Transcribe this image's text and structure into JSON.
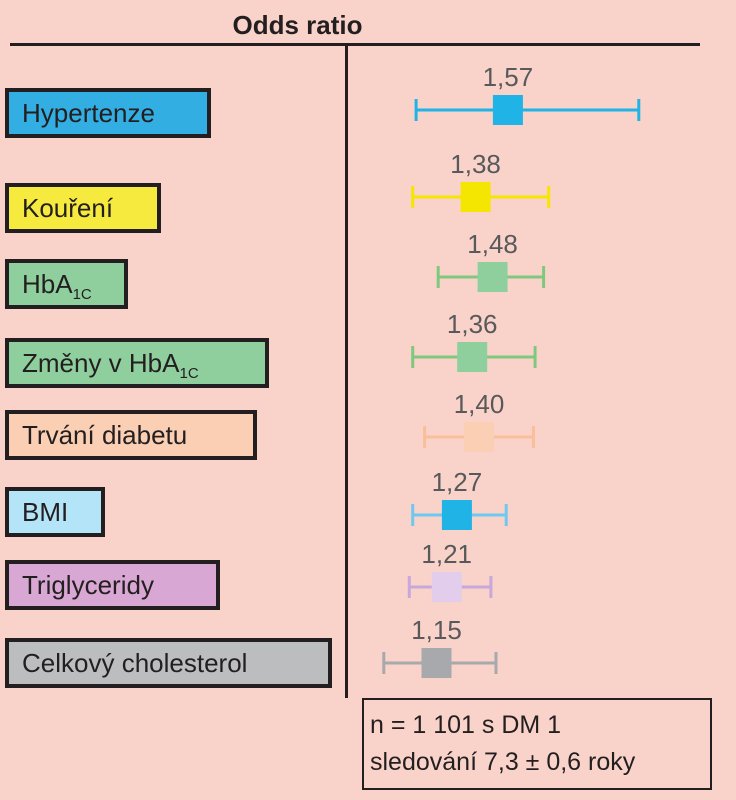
{
  "title": "Odds ratio",
  "labels": {
    "hypertension": "Hypertenze",
    "smoking": "Kouření",
    "hba1c_main": "HbA",
    "hba1c_sub": "1C",
    "hba1c_change_main": "Změny v HbA",
    "hba1c_change_sub": "1C",
    "diabetes_duration": "Trvání diabetu",
    "bmi": "BMI",
    "triglycerides": "Triglyceridy",
    "cholesterol": "Celkový cholesterol"
  },
  "colors": {
    "background": "#f9d3c9",
    "hypertension": "#33aee2",
    "smoking": "#f5ea3d",
    "hba1c": "#8fcf9e",
    "hba1c_change": "#8fcf9e",
    "diabetes_duration": "#fbcfb3",
    "bmi": "#b4e4f7",
    "triglycerides": "#d9a7d3",
    "cholesterol": "#bcbdbf"
  },
  "chart_data": {
    "type": "forest",
    "x_scale": "linear (no printed ticks)",
    "reference_line": 1.0,
    "items": [
      {
        "key": "hypertension",
        "or": 1.57,
        "lo": 1.03,
        "hi": 2.34,
        "label_text": "1,57",
        "color": "#1fb3e6",
        "marker_color": "#1fb3e6"
      },
      {
        "key": "smoking",
        "or": 1.38,
        "lo": 1.01,
        "hi": 1.81,
        "label_text": "1,38",
        "color": "#f4e600",
        "marker_color": "#f4e600"
      },
      {
        "key": "hba1c",
        "or": 1.48,
        "lo": 1.16,
        "hi": 1.78,
        "label_text": "1,48",
        "color": "#7fc97f",
        "marker_color": "#8fcf9e"
      },
      {
        "key": "hba1c_change",
        "or": 1.36,
        "lo": 1.01,
        "hi": 1.73,
        "label_text": "1,36",
        "color": "#7fc97f",
        "marker_color": "#8fcf9e"
      },
      {
        "key": "diabetes_duration",
        "or": 1.4,
        "lo": 1.08,
        "hi": 1.72,
        "label_text": "1,40",
        "color": "#f9bf9a",
        "marker_color": "#fbcfb3"
      },
      {
        "key": "bmi",
        "or": 1.27,
        "lo": 1.01,
        "hi": 1.56,
        "label_text": "1,27",
        "color": "#6dc9ef",
        "marker_color": "#1fb3e6"
      },
      {
        "key": "triglycerides",
        "or": 1.21,
        "lo": 0.99,
        "hi": 1.47,
        "label_text": "1,21",
        "color": "#c9a7dc",
        "marker_color": "#e2cdec"
      },
      {
        "key": "cholesterol",
        "or": 1.15,
        "lo": 0.84,
        "hi": 1.5,
        "label_text": "1,15",
        "color": "#a7a9ac",
        "marker_color": "#a7a9ac"
      }
    ]
  },
  "note": {
    "line1": "n = 1 101 s DM 1",
    "line2": "sledování 7,3 ± 0,6 roky"
  }
}
